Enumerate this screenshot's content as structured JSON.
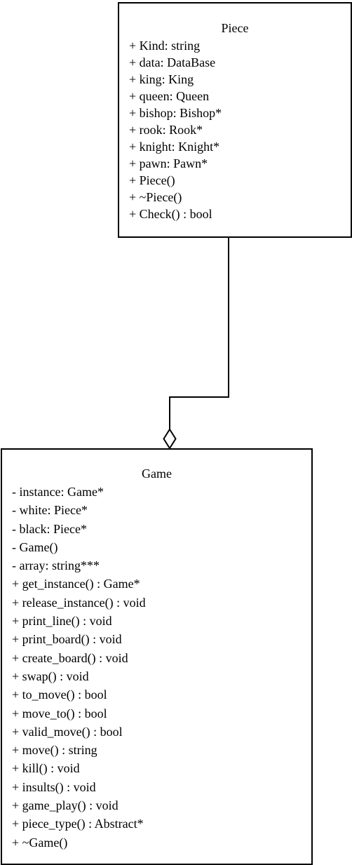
{
  "diagram": {
    "classes": [
      {
        "id": "piece",
        "name": "Piece",
        "members": [
          "+ Kind: string",
          "+ data: DataBase",
          "+ king: King",
          "+ queen: Queen",
          "+ bishop: Bishop*",
          "+ rook: Rook*",
          "+ knight: Knight*",
          "+ pawn: Pawn*",
          "+ Piece()",
          "+ ~Piece()",
          "+ Check() : bool"
        ]
      },
      {
        "id": "game",
        "name": "Game",
        "members": [
          "- instance: Game*",
          "- white: Piece*",
          "- black: Piece*",
          "- Game()",
          "- array: string***",
          "+ get_instance() : Game*",
          "+ release_instance() : void",
          "+ print_line() : void",
          "+ print_board() : void",
          "+ create_board() : void",
          "+ swap() : void",
          "+ to_move() : bool",
          "+ move_to() : bool",
          "+ valid_move() : bool",
          "+ move() : string",
          "+ kill() : void",
          "+ insults() : void",
          "+ game_play() : void",
          "+ piece_type() : Abstract*",
          "+ ~Game()"
        ]
      }
    ],
    "relations": [
      {
        "type": "aggregation",
        "from": "piece",
        "to": "game",
        "whole_end": "game"
      }
    ]
  }
}
